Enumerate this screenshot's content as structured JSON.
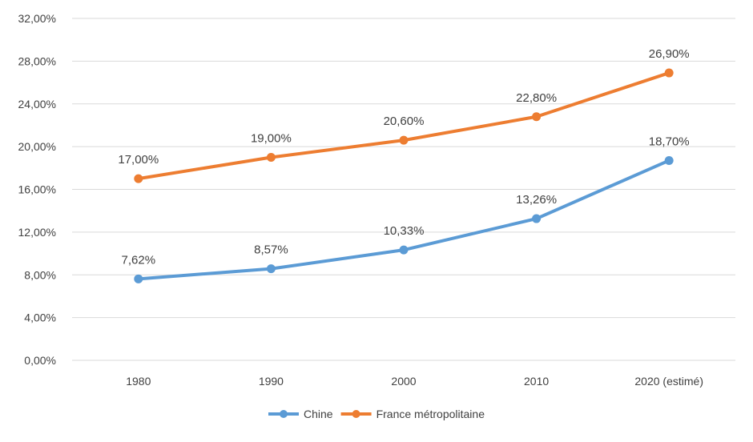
{
  "chart_data": {
    "type": "line",
    "categories": [
      "1980",
      "1990",
      "2000",
      "2010",
      "2020 (estimé)"
    ],
    "series": [
      {
        "name": "Chine",
        "color": "#5b9bd5",
        "values": [
          7.62,
          8.57,
          10.33,
          13.26,
          18.7
        ],
        "labels": [
          "7,62%",
          "8,57%",
          "10,33%",
          "13,26%",
          "18,70%"
        ]
      },
      {
        "name": "France métropolitaine",
        "color": "#ed7d31",
        "values": [
          17.0,
          19.0,
          20.6,
          22.8,
          26.9
        ],
        "labels": [
          "17,00%",
          "19,00%",
          "20,60%",
          "22,80%",
          "26,90%"
        ]
      }
    ],
    "ylim": [
      0,
      32
    ],
    "yticks": [
      0,
      4,
      8,
      12,
      16,
      20,
      24,
      28,
      32
    ],
    "ytick_labels": [
      "0,00%",
      "4,00%",
      "8,00%",
      "12,00%",
      "16,00%",
      "20,00%",
      "24,00%",
      "28,00%",
      "32,00%"
    ],
    "grid": true,
    "legend_position": "bottom",
    "title": "",
    "xlabel": "",
    "ylabel": ""
  }
}
